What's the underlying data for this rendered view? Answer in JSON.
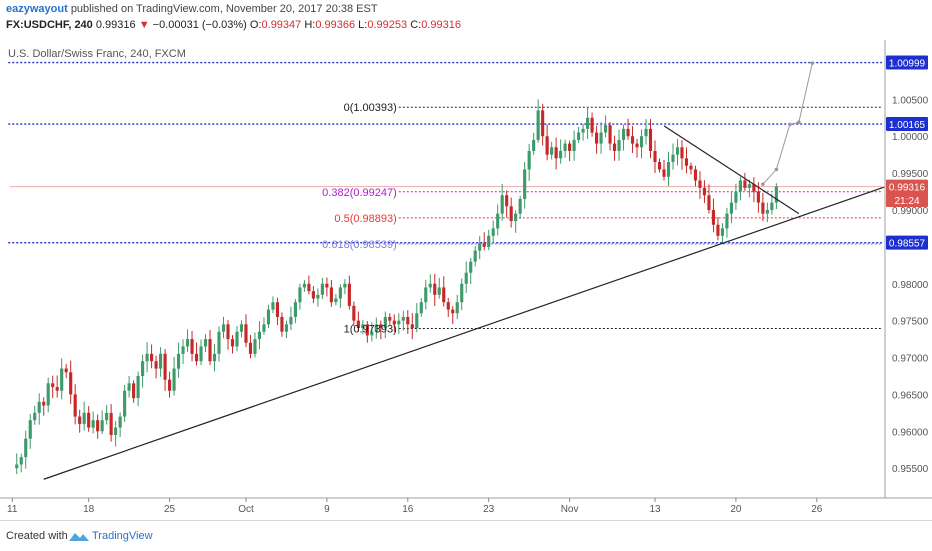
{
  "header": {
    "author": "eazywayout",
    "published_text": "published on TradingView.com, November 20, 2017 20:38 EST",
    "symbol": "FX:USDCHF, 240",
    "last": "0.99316",
    "change": "−0.00031 (−0.03%)",
    "o_label": "O:",
    "o_value": "0.99347",
    "h_label": "H:",
    "h_value": "0.99366",
    "l_label": "L:",
    "l_value": "0.99253",
    "c_label": "C:",
    "c_value": "0.99316"
  },
  "chart_title": "U.S. Dollar/Swiss Franc, 240, FXCM",
  "footer": {
    "created_with": "Created with",
    "brand": "TradingView"
  },
  "colors": {
    "up": "#3d9a6b",
    "down": "#c62828",
    "trend": "#222222",
    "blue_level": "#1e2fd0",
    "fib382": "#b01ed0",
    "fib5": "#e53935",
    "fib618": "#7a7fe0"
  },
  "chart_data": {
    "type": "candlestick",
    "ylim": [
      0.9515,
      1.0125
    ],
    "yticks": [
      "1.00500",
      "1.00000",
      "0.99500",
      "0.99000",
      "0.98000",
      "0.97500",
      "0.97000",
      "0.96500",
      "0.96000",
      "0.95500"
    ],
    "xticks": [
      "11",
      "18",
      "25",
      "Oct",
      "9",
      "16",
      "23",
      "Nov",
      "13",
      "20",
      "26"
    ],
    "xtick_index": [
      0,
      17,
      35,
      52,
      70,
      88,
      106,
      124,
      143,
      161,
      179
    ],
    "n_bars": 194,
    "price_tags": [
      {
        "label": "1.00999",
        "value": 1.00999
      },
      {
        "label": "1.00165",
        "value": 1.00165
      },
      {
        "label": "0.99316",
        "value": 0.99316
      },
      {
        "label": "21:24",
        "value": 0.99135
      },
      {
        "label": "0.98557",
        "value": 0.98557
      }
    ],
    "levels": [
      {
        "value": 1.00999,
        "color": "blue_level",
        "start": 0
      },
      {
        "value": 1.00165,
        "color": "blue_level",
        "start": 0
      },
      {
        "value": 0.98557,
        "color": "blue_level",
        "start": 0
      }
    ],
    "fib": [
      {
        "label": "0(1.00393)",
        "value": 1.00393,
        "color": "trend",
        "start": 86
      },
      {
        "label": "0.382(0.99247)",
        "value": 0.99247,
        "color": "fib382",
        "start": 86
      },
      {
        "label": "0.5(0.98893)",
        "value": 0.98893,
        "color": "fib5",
        "start": 86
      },
      {
        "label": "0.618(0.98539)",
        "value": 0.98539,
        "color": "fib618",
        "start": 86
      },
      {
        "label": "1(0.97393)",
        "value": 0.97393,
        "color": "trend",
        "start": 86
      }
    ],
    "trendlines": [
      {
        "i1": 7,
        "v1": 0.9535,
        "i2": 194,
        "v2": 0.9931
      },
      {
        "i1": 145,
        "v1": 1.0014,
        "i2": 175,
        "v2": 0.9895
      }
    ],
    "projection": [
      [
        167,
        0.9935
      ],
      [
        170,
        0.9955
      ],
      [
        173,
        1.0016
      ],
      [
        175,
        1.0019
      ],
      [
        178,
        1.0099
      ]
    ],
    "price_line": 0.99316,
    "closes": [
      0.955,
      0.9555,
      0.9565,
      0.959,
      0.9615,
      0.9625,
      0.964,
      0.9635,
      0.9665,
      0.966,
      0.9655,
      0.9685,
      0.968,
      0.965,
      0.962,
      0.961,
      0.9625,
      0.9605,
      0.9615,
      0.96,
      0.9615,
      0.9625,
      0.9595,
      0.9605,
      0.962,
      0.9655,
      0.9665,
      0.9645,
      0.9675,
      0.9695,
      0.9705,
      0.9695,
      0.9685,
      0.9705,
      0.967,
      0.9655,
      0.9685,
      0.9705,
      0.9715,
      0.9725,
      0.9705,
      0.9695,
      0.9715,
      0.9725,
      0.9695,
      0.9705,
      0.9735,
      0.9745,
      0.9725,
      0.9715,
      0.9735,
      0.9745,
      0.972,
      0.9705,
      0.9725,
      0.9735,
      0.9745,
      0.9765,
      0.9775,
      0.9755,
      0.9735,
      0.9745,
      0.9755,
      0.9775,
      0.9795,
      0.98,
      0.979,
      0.978,
      0.9785,
      0.98,
      0.9795,
      0.9775,
      0.978,
      0.9795,
      0.98,
      0.977,
      0.975,
      0.974,
      0.9745,
      0.973,
      0.9735,
      0.9745,
      0.974,
      0.9755,
      0.975,
      0.9745,
      0.975,
      0.9755,
      0.9745,
      0.974,
      0.976,
      0.9775,
      0.9795,
      0.98,
      0.9785,
      0.9795,
      0.9775,
      0.9765,
      0.976,
      0.9775,
      0.98,
      0.9815,
      0.983,
      0.9845,
      0.9855,
      0.985,
      0.9865,
      0.9875,
      0.9895,
      0.992,
      0.9905,
      0.9885,
      0.9895,
      0.9915,
      0.9955,
      0.998,
      0.9995,
      1.0035,
      1.0,
      0.9975,
      0.9985,
      0.997,
      0.998,
      0.999,
      0.998,
      0.9995,
      1.0005,
      1.001,
      1.0025,
      1.0005,
      0.999,
      1.0005,
      1.0015,
      0.999,
      0.998,
      0.9995,
      1.001,
      1.0,
      0.999,
      0.9985,
      1.0,
      1.001,
      0.998,
      0.9965,
      0.9955,
      0.9945,
      0.9965,
      0.9975,
      0.9985,
      0.997,
      0.996,
      0.9955,
      0.994,
      0.993,
      0.992,
      0.99,
      0.988,
      0.9865,
      0.9875,
      0.9895,
      0.991,
      0.9925,
      0.994,
      0.993,
      0.9935,
      0.9925,
      0.991,
      0.9895,
      0.99,
      0.991,
      0.9932
    ],
    "last_bar_index": 168
  }
}
